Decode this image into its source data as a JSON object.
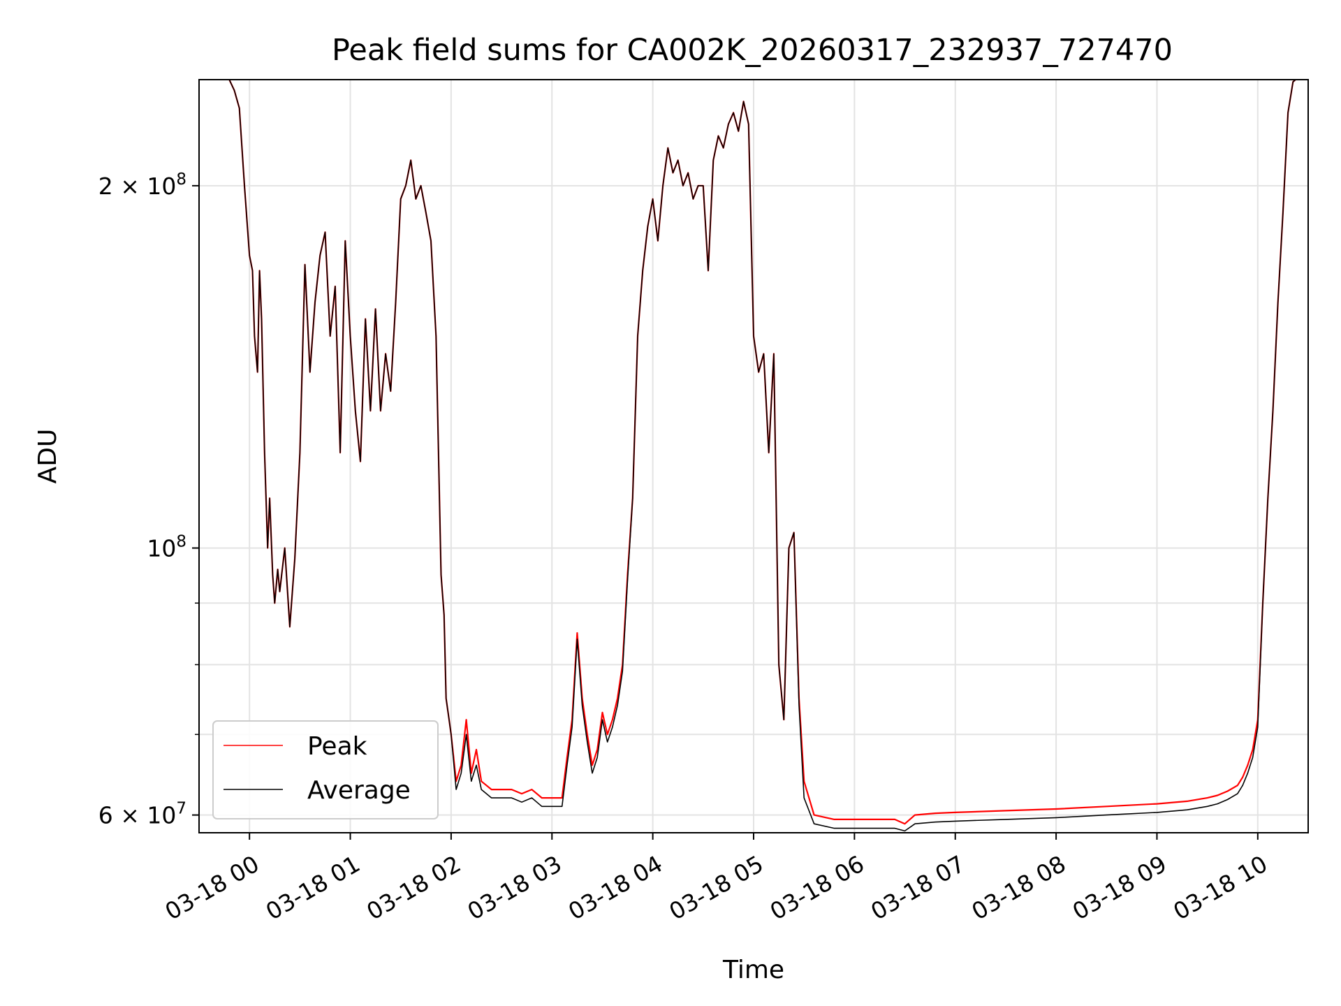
{
  "chart_data": {
    "type": "line",
    "title": "Peak field sums for CA002K_20260317_232937_727470",
    "xlabel": "Time",
    "ylabel": "ADU",
    "x_unit": "hours",
    "xlim": [
      -0.5,
      10.5
    ],
    "ylim": [
      58000000,
      245000000
    ],
    "y_scale": "log",
    "grid": true,
    "legend_position": "lower left",
    "x_ticks": [
      {
        "value": 0,
        "label": "03-18 00"
      },
      {
        "value": 1,
        "label": "03-18 01"
      },
      {
        "value": 2,
        "label": "03-18 02"
      },
      {
        "value": 3,
        "label": "03-18 03"
      },
      {
        "value": 4,
        "label": "03-18 04"
      },
      {
        "value": 5,
        "label": "03-18 05"
      },
      {
        "value": 6,
        "label": "03-18 06"
      },
      {
        "value": 7,
        "label": "03-18 07"
      },
      {
        "value": 8,
        "label": "03-18 08"
      },
      {
        "value": 9,
        "label": "03-18 09"
      },
      {
        "value": 10,
        "label": "03-18 10"
      }
    ],
    "y_ticks": [
      {
        "value": 60000000,
        "base": "6 × 10",
        "exp": "7"
      },
      {
        "value": 100000000,
        "base": "10",
        "exp": "8"
      },
      {
        "value": 200000000,
        "base": "2 × 10",
        "exp": "8"
      }
    ],
    "y_minor_ticks": [
      70000000,
      80000000,
      90000000
    ],
    "series": [
      {
        "name": "Peak",
        "color": "#ff0000",
        "x": [
          -0.5,
          -0.3,
          -0.2,
          -0.15,
          -0.1,
          -0.05,
          0.0,
          0.03,
          0.05,
          0.08,
          0.1,
          0.12,
          0.15,
          0.18,
          0.2,
          0.23,
          0.25,
          0.28,
          0.3,
          0.35,
          0.4,
          0.45,
          0.5,
          0.55,
          0.6,
          0.65,
          0.7,
          0.75,
          0.8,
          0.85,
          0.9,
          0.95,
          1.0,
          1.05,
          1.1,
          1.15,
          1.2,
          1.25,
          1.3,
          1.35,
          1.4,
          1.45,
          1.5,
          1.55,
          1.6,
          1.65,
          1.7,
          1.75,
          1.8,
          1.85,
          1.9,
          1.93,
          1.95,
          1.98,
          2.0,
          2.05,
          2.1,
          2.15,
          2.2,
          2.25,
          2.3,
          2.4,
          2.5,
          2.6,
          2.7,
          2.8,
          2.9,
          3.0,
          3.1,
          3.15,
          3.2,
          3.25,
          3.3,
          3.35,
          3.4,
          3.45,
          3.5,
          3.55,
          3.6,
          3.65,
          3.7,
          3.75,
          3.8,
          3.85,
          3.9,
          3.95,
          4.0,
          4.05,
          4.1,
          4.15,
          4.2,
          4.25,
          4.3,
          4.35,
          4.4,
          4.45,
          4.5,
          4.55,
          4.6,
          4.65,
          4.7,
          4.75,
          4.8,
          4.85,
          4.9,
          4.95,
          5.0,
          5.05,
          5.1,
          5.15,
          5.2,
          5.25,
          5.3,
          5.35,
          5.4,
          5.45,
          5.5,
          5.6,
          5.8,
          6.0,
          6.2,
          6.4,
          6.5,
          6.6,
          6.8,
          7.0,
          7.5,
          8.0,
          8.5,
          9.0,
          9.3,
          9.5,
          9.6,
          9.7,
          9.8,
          9.85,
          9.9,
          9.95,
          10.0,
          10.05,
          10.1,
          10.15,
          10.2,
          10.25,
          10.3,
          10.35,
          10.4,
          10.5
        ],
        "values": [
          246000000,
          246000000,
          245000000,
          240000000,
          232000000,
          200000000,
          175000000,
          170000000,
          150000000,
          140000000,
          170000000,
          155000000,
          120000000,
          100000000,
          110000000,
          95000000,
          90000000,
          96000000,
          92000000,
          100000000,
          86000000,
          98000000,
          120000000,
          172000000,
          140000000,
          160000000,
          175000000,
          183000000,
          150000000,
          165000000,
          120000000,
          180000000,
          150000000,
          130000000,
          118000000,
          155000000,
          130000000,
          158000000,
          130000000,
          145000000,
          135000000,
          160000000,
          195000000,
          200000000,
          210000000,
          195000000,
          200000000,
          190000000,
          180000000,
          150000000,
          95000000,
          88000000,
          75000000,
          72000000,
          70000000,
          64000000,
          66000000,
          72000000,
          65000000,
          68000000,
          64000000,
          63000000,
          63000000,
          63000000,
          62500000,
          63000000,
          62000000,
          62000000,
          62000000,
          67000000,
          72000000,
          85000000,
          75000000,
          70000000,
          66000000,
          68000000,
          73000000,
          70000000,
          72000000,
          75000000,
          80000000,
          95000000,
          110000000,
          150000000,
          170000000,
          185000000,
          195000000,
          180000000,
          200000000,
          215000000,
          205000000,
          210000000,
          200000000,
          205000000,
          195000000,
          200000000,
          200000000,
          170000000,
          210000000,
          220000000,
          215000000,
          225000000,
          230000000,
          222000000,
          235000000,
          225000000,
          150000000,
          140000000,
          145000000,
          120000000,
          145000000,
          80000000,
          72000000,
          100000000,
          103000000,
          75000000,
          64000000,
          60000000,
          59500000,
          59500000,
          59500000,
          59500000,
          59000000,
          60000000,
          60200000,
          60300000,
          60500000,
          60700000,
          61000000,
          61300000,
          61600000,
          62000000,
          62300000,
          62800000,
          63500000,
          64500000,
          66000000,
          68000000,
          72000000,
          90000000,
          110000000,
          130000000,
          160000000,
          190000000,
          230000000,
          244000000,
          246000000,
          246000000
        ]
      },
      {
        "name": "Average",
        "color": "#000000",
        "x": [
          -0.5,
          -0.3,
          -0.2,
          -0.15,
          -0.1,
          -0.05,
          0.0,
          0.03,
          0.05,
          0.08,
          0.1,
          0.12,
          0.15,
          0.18,
          0.2,
          0.23,
          0.25,
          0.28,
          0.3,
          0.35,
          0.4,
          0.45,
          0.5,
          0.55,
          0.6,
          0.65,
          0.7,
          0.75,
          0.8,
          0.85,
          0.9,
          0.95,
          1.0,
          1.05,
          1.1,
          1.15,
          1.2,
          1.25,
          1.3,
          1.35,
          1.4,
          1.45,
          1.5,
          1.55,
          1.6,
          1.65,
          1.7,
          1.75,
          1.8,
          1.85,
          1.9,
          1.93,
          1.95,
          1.98,
          2.0,
          2.05,
          2.1,
          2.15,
          2.2,
          2.25,
          2.3,
          2.4,
          2.5,
          2.6,
          2.7,
          2.8,
          2.9,
          3.0,
          3.1,
          3.15,
          3.2,
          3.25,
          3.3,
          3.35,
          3.4,
          3.45,
          3.5,
          3.55,
          3.6,
          3.65,
          3.7,
          3.75,
          3.8,
          3.85,
          3.9,
          3.95,
          4.0,
          4.05,
          4.1,
          4.15,
          4.2,
          4.25,
          4.3,
          4.35,
          4.4,
          4.45,
          4.5,
          4.55,
          4.6,
          4.65,
          4.7,
          4.75,
          4.8,
          4.85,
          4.9,
          4.95,
          5.0,
          5.05,
          5.1,
          5.15,
          5.2,
          5.25,
          5.3,
          5.35,
          5.4,
          5.45,
          5.5,
          5.6,
          5.8,
          6.0,
          6.2,
          6.4,
          6.5,
          6.6,
          6.8,
          7.0,
          7.5,
          8.0,
          8.5,
          9.0,
          9.3,
          9.5,
          9.6,
          9.7,
          9.8,
          9.85,
          9.9,
          9.95,
          10.0,
          10.05,
          10.1,
          10.15,
          10.2,
          10.25,
          10.3,
          10.35,
          10.4,
          10.5
        ],
        "values": [
          246000000,
          246000000,
          245000000,
          240000000,
          232000000,
          200000000,
          175000000,
          170000000,
          150000000,
          140000000,
          170000000,
          155000000,
          120000000,
          100000000,
          110000000,
          95000000,
          90000000,
          96000000,
          92000000,
          100000000,
          86000000,
          98000000,
          120000000,
          172000000,
          140000000,
          160000000,
          175000000,
          183000000,
          150000000,
          165000000,
          120000000,
          180000000,
          150000000,
          130000000,
          118000000,
          155000000,
          130000000,
          158000000,
          130000000,
          145000000,
          135000000,
          160000000,
          195000000,
          200000000,
          210000000,
          195000000,
          200000000,
          190000000,
          180000000,
          150000000,
          95000000,
          88000000,
          75000000,
          72000000,
          70000000,
          63000000,
          65000000,
          70000000,
          64000000,
          66000000,
          63000000,
          62000000,
          62000000,
          62000000,
          61500000,
          62000000,
          61000000,
          61000000,
          61000000,
          66000000,
          71000000,
          84000000,
          74000000,
          69000000,
          65000000,
          67000000,
          72000000,
          69000000,
          71000000,
          74000000,
          79000000,
          94000000,
          110000000,
          150000000,
          170000000,
          185000000,
          195000000,
          180000000,
          200000000,
          215000000,
          205000000,
          210000000,
          200000000,
          205000000,
          195000000,
          200000000,
          200000000,
          170000000,
          210000000,
          220000000,
          215000000,
          225000000,
          230000000,
          222000000,
          235000000,
          225000000,
          150000000,
          140000000,
          145000000,
          120000000,
          145000000,
          80000000,
          72000000,
          100000000,
          103000000,
          74000000,
          62000000,
          59000000,
          58500000,
          58500000,
          58500000,
          58500000,
          58200000,
          59000000,
          59200000,
          59300000,
          59500000,
          59700000,
          60000000,
          60300000,
          60600000,
          61000000,
          61300000,
          61800000,
          62500000,
          63500000,
          65000000,
          67000000,
          71000000,
          90000000,
          110000000,
          130000000,
          160000000,
          190000000,
          230000000,
          244000000,
          246000000,
          246000000
        ]
      }
    ]
  }
}
